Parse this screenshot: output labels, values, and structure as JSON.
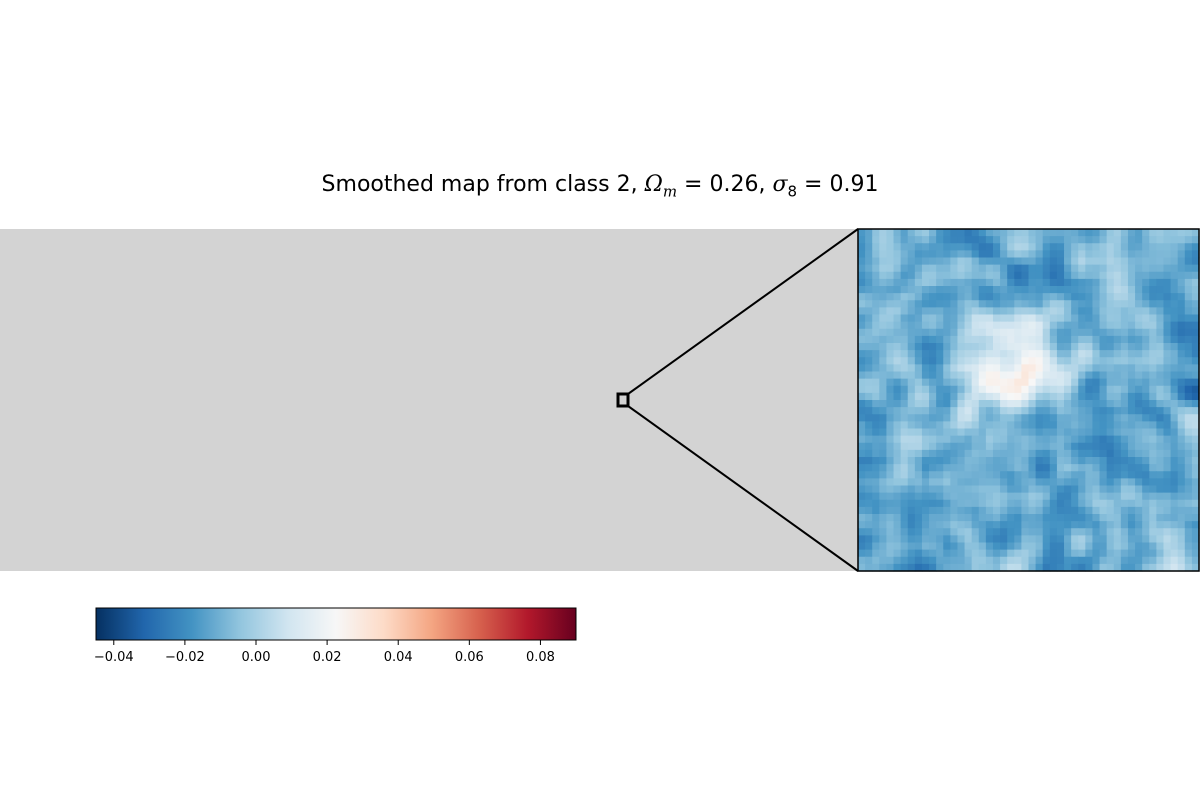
{
  "chart_data": {
    "type": "heatmap",
    "title": {
      "prefix": "Smoothed map from class 2, ",
      "omega_symbol": "Ω",
      "omega_sub": "m",
      "omega_value": " = 0.26, ",
      "sigma_symbol": "σ",
      "sigma_sub": "8",
      "sigma_value": " = 0.91"
    },
    "colormap": "RdBu_r",
    "colorbar": {
      "vmin": -0.045,
      "vmax": 0.09,
      "ticks": [
        -0.04,
        -0.02,
        0.0,
        0.02,
        0.04,
        0.06,
        0.08
      ],
      "tick_labels": [
        "−0.04",
        "−0.02",
        "0.00",
        "0.02",
        "0.04",
        "0.06",
        "0.08"
      ],
      "orientation": "horizontal"
    },
    "full_map": {
      "background_color": "#d3d3d3"
    },
    "zoom_inset": {
      "grid_size": 48,
      "value_mean": -0.012,
      "value_range": [
        -0.03,
        0.04
      ],
      "hot_region": "center-left"
    }
  },
  "colors": {
    "background": "#ffffff",
    "map_background": "#d3d3d3",
    "outline": "#000000"
  }
}
